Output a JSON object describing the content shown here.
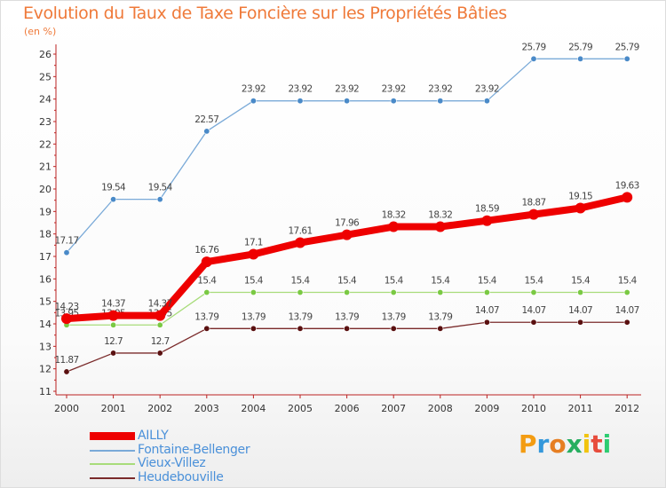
{
  "title": "Evolution du Taux de Taxe Foncière sur les Propriétés Bâties",
  "subtitle": "(en %)",
  "logo_text": "Proxiti",
  "colors": {
    "title": "#ef7a3a",
    "axis": "#bb2222",
    "legend_text": "#4a90d9"
  },
  "chart_data": {
    "type": "line",
    "title": "Evolution du Taux de Taxe Foncière sur les Propriétés Bâties",
    "ylabel": "(en %)",
    "xlabel": "",
    "ylim": [
      11,
      26
    ],
    "yticks": [
      "11",
      "12",
      "13",
      "14",
      "15",
      "16",
      "17",
      "18",
      "19",
      "20",
      "21",
      "22",
      "23",
      "24",
      "25",
      "26"
    ],
    "categories": [
      "2000",
      "2001",
      "2002",
      "2003",
      "2004",
      "2005",
      "2006",
      "2007",
      "2008",
      "2009",
      "2010",
      "2011",
      "2012"
    ],
    "grid": false,
    "legend_position": "bottom-left",
    "series": [
      {
        "name": "Heudebouville",
        "color": "#7a2a2a",
        "marker_color": "#5a1010",
        "values": [
          11.87,
          12.7,
          12.7,
          13.79,
          13.79,
          13.79,
          13.79,
          13.79,
          13.79,
          14.07,
          14.07,
          14.07,
          14.07
        ],
        "labels": [
          "11.87",
          "12.7",
          "12.7",
          "13.79",
          "13.79",
          "13.79",
          "13.79",
          "13.79",
          "13.79",
          "14.07",
          "14.07",
          "14.07",
          "14.07"
        ]
      },
      {
        "name": "Vieux-Villez",
        "color": "#a8dc7a",
        "marker_color": "#7ac943",
        "values": [
          13.95,
          13.95,
          13.95,
          15.4,
          15.4,
          15.4,
          15.4,
          15.4,
          15.4,
          15.4,
          15.4,
          15.4,
          15.4
        ],
        "labels": [
          "13.95",
          "13.95",
          "13.95",
          "15.4",
          "15.4",
          "15.4",
          "15.4",
          "15.4",
          "15.4",
          "15.4",
          "15.4",
          "15.4",
          "15.4"
        ]
      },
      {
        "name": "AILLY",
        "color": "#ee0000",
        "marker_color": "#ee0000",
        "values": [
          14.23,
          14.37,
          14.37,
          16.76,
          17.1,
          17.61,
          17.96,
          18.32,
          18.32,
          18.59,
          18.87,
          19.15,
          19.63
        ],
        "labels": [
          "14.23",
          "14.37",
          "14.37",
          "16.76",
          "17.1",
          "17.61",
          "17.96",
          "18.32",
          "18.32",
          "18.59",
          "18.87",
          "19.15",
          "19.63"
        ]
      },
      {
        "name": "Fontaine-Bellenger",
        "color": "#7aaad8",
        "marker_color": "#4a8ac8",
        "values": [
          17.17,
          19.54,
          19.54,
          22.57,
          23.92,
          23.92,
          23.92,
          23.92,
          23.92,
          23.92,
          25.79,
          25.79,
          25.79
        ],
        "labels": [
          "17.17",
          "19.54",
          "19.54",
          "22.57",
          "23.92",
          "23.92",
          "23.92",
          "23.92",
          "23.92",
          "23.92",
          "25.79",
          "25.79",
          "25.79"
        ]
      }
    ],
    "legend": [
      "AILLY",
      "Fontaine-Bellenger",
      "Vieux-Villez",
      "Heudebouville"
    ]
  }
}
